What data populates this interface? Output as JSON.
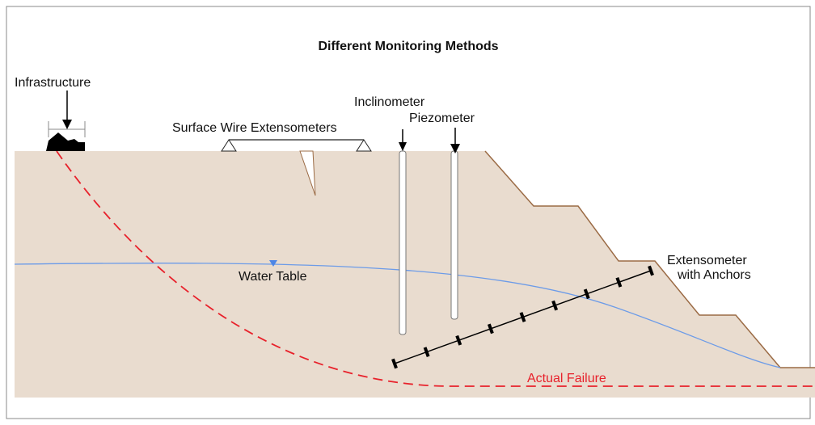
{
  "title": "Different Monitoring Methods",
  "labels": {
    "infrastructure": "Infrastructure",
    "surface_wire": "Surface Wire Extensometers",
    "inclinometer": "Inclinometer",
    "piezometer": "Piezometer",
    "water_table": "Water Table",
    "extensometer": [
      "Extensometer",
      "with Anchors"
    ],
    "failure": "Actual Failure"
  }
}
